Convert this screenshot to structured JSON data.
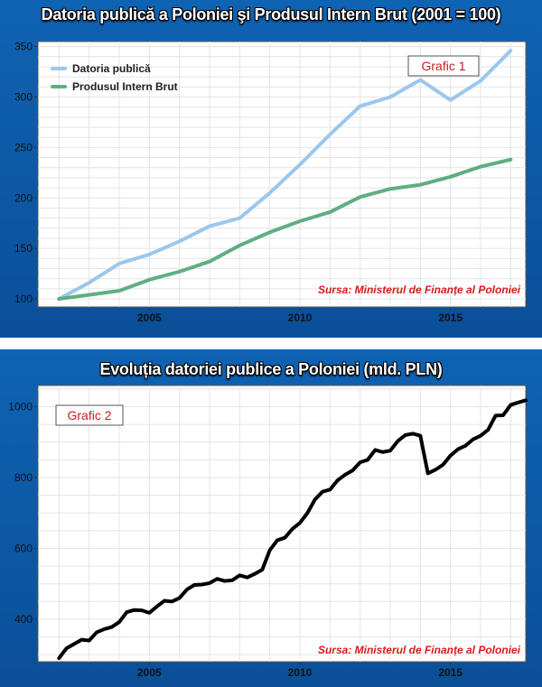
{
  "chart_data": [
    {
      "type": "line",
      "title": "Datoria publică a Poloniei şi Produsul Intern Brut (2001 = 100)",
      "badge": "Grafic 1",
      "source": "Sursa: Ministerul de Finanțe al Poloniei",
      "xlim": [
        2001.3,
        2017.5
      ],
      "ylim": [
        92,
        355
      ],
      "yticks": [
        100,
        150,
        200,
        250,
        300,
        350
      ],
      "xticks": [
        2005,
        2010,
        2015
      ],
      "legend_position": "top-left",
      "grid": true,
      "x": [
        2002,
        2003,
        2004,
        2005,
        2006,
        2007,
        2008,
        2009,
        2010,
        2011,
        2012,
        2013,
        2014,
        2015,
        2016,
        2017
      ],
      "series": [
        {
          "name": "Datoria publică",
          "color": "#9cc7ec",
          "values": [
            100,
            116,
            135,
            144,
            157,
            172,
            180,
            205,
            233,
            263,
            291,
            300,
            317,
            297,
            316,
            346
          ]
        },
        {
          "name": "Produsul Intern Brut",
          "color": "#5fae80",
          "values": [
            100,
            104,
            108,
            119,
            127,
            137,
            153,
            166,
            177,
            186,
            201,
            209,
            213,
            221,
            231,
            238
          ]
        }
      ]
    },
    {
      "type": "line",
      "title": "Evoluția datoriei publice a Poloniei (mld. PLN)",
      "badge": "Grafic 2",
      "source": "Sursa: Ministerul de Finanțe al Poloniei",
      "xlim": [
        2001.3,
        2017.5
      ],
      "ylim": [
        280,
        1060
      ],
      "yticks": [
        400,
        600,
        800,
        1000
      ],
      "xticks": [
        2005,
        2010,
        2015
      ],
      "grid": true,
      "series": [
        {
          "color": "#000000",
          "points": [
            [
              2002.0,
              290
            ],
            [
              2002.25,
              318
            ],
            [
              2002.5,
              330
            ],
            [
              2002.75,
              342
            ],
            [
              2003.0,
              340
            ],
            [
              2003.25,
              363
            ],
            [
              2003.5,
              372
            ],
            [
              2003.75,
              378
            ],
            [
              2004.0,
              392
            ],
            [
              2004.25,
              420
            ],
            [
              2004.5,
              426
            ],
            [
              2004.75,
              425
            ],
            [
              2005.0,
              418
            ],
            [
              2005.25,
              436
            ],
            [
              2005.5,
              452
            ],
            [
              2005.75,
              450
            ],
            [
              2006.0,
              460
            ],
            [
              2006.25,
              484
            ],
            [
              2006.5,
              497
            ],
            [
              2006.75,
              498
            ],
            [
              2007.0,
              502
            ],
            [
              2007.25,
              514
            ],
            [
              2007.5,
              508
            ],
            [
              2007.75,
              510
            ],
            [
              2008.0,
              524
            ],
            [
              2008.25,
              518
            ],
            [
              2008.5,
              528
            ],
            [
              2008.75,
              540
            ],
            [
              2009.0,
              595
            ],
            [
              2009.25,
              623
            ],
            [
              2009.5,
              630
            ],
            [
              2009.75,
              655
            ],
            [
              2010.0,
              672
            ],
            [
              2010.25,
              700
            ],
            [
              2010.5,
              738
            ],
            [
              2010.75,
              760
            ],
            [
              2011.0,
              766
            ],
            [
              2011.25,
              792
            ],
            [
              2011.5,
              808
            ],
            [
              2011.75,
              820
            ],
            [
              2012.0,
              843
            ],
            [
              2012.25,
              850
            ],
            [
              2012.5,
              878
            ],
            [
              2012.75,
              872
            ],
            [
              2013.0,
              876
            ],
            [
              2013.25,
              903
            ],
            [
              2013.5,
              920
            ],
            [
              2013.75,
              924
            ],
            [
              2014.0,
              918
            ],
            [
              2014.25,
              812
            ],
            [
              2014.5,
              822
            ],
            [
              2014.75,
              836
            ],
            [
              2015.0,
              862
            ],
            [
              2015.25,
              880
            ],
            [
              2015.5,
              890
            ],
            [
              2015.75,
              908
            ],
            [
              2016.0,
              918
            ],
            [
              2016.25,
              935
            ],
            [
              2016.5,
              975
            ],
            [
              2016.75,
              976
            ],
            [
              2017.0,
              1005
            ],
            [
              2017.25,
              1012
            ],
            [
              2017.5,
              1018
            ]
          ]
        }
      ]
    }
  ]
}
